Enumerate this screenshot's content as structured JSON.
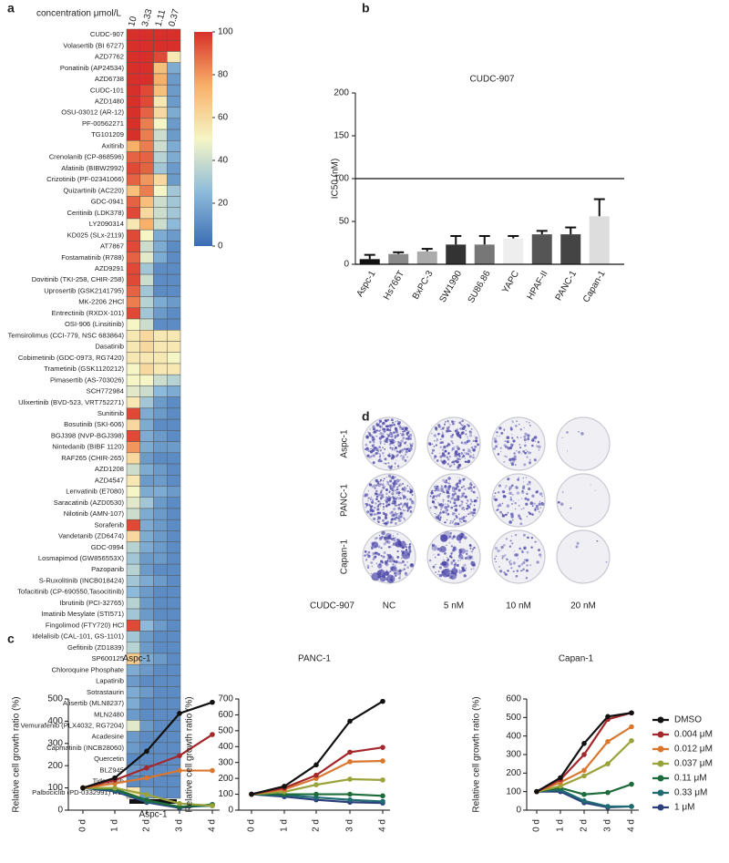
{
  "chart_data": [
    {
      "panel": "a",
      "type": "heatmap",
      "title": "concentration μmol/L",
      "columns": [
        "10",
        "3.33",
        "1.11",
        "0.37"
      ],
      "rows": [
        "CUDC-907",
        "Volasertib (BI 6727)",
        "AZD7762",
        "Ponatinib (AP24534)",
        "AZD6738",
        "CUDC-101",
        "AZD1480",
        "OSU-03012 (AR-12)",
        "PF-00562271",
        "TG101209",
        "Axitinib",
        "Crenolanib (CP-868596)",
        "Afatinib (BIBW2992)",
        "Crizotinib (PF-02341066)",
        "Quizartinib (AC220)",
        "GDC-0941",
        "Ceritinib (LDK378)",
        "LY2090314",
        "KD025 (SLx-2119)",
        "AT7867",
        "Fostamatinib (R788)",
        "AZD9291",
        "Dovitinib (TKI-258, CHIR-258)",
        "Uprosertib (GSK2141795)",
        "MK-2206 2HCl",
        "Entrectinib (RXDX-101)",
        "OSI-906 (Linsitinib)",
        "Temsirolimus (CCI-779, NSC 683864)",
        "Dasatinib",
        "Cobimetinib (GDC-0973, RG7420)",
        "Trametinib (GSK1120212)",
        "Pimasertib (AS-703026)",
        "SCH772984",
        "Ulixertinib (BVD-523, VRT752271)",
        "Sunitinib",
        "Bosutinib (SKI-606)",
        "BGJ398 (NVP-BGJ398)",
        "Nintedanib (BIBF 1120)",
        "RAF265 (CHIR-265)",
        "AZD1208",
        "AZD4547",
        "Lenvatinib (E7080)",
        "Saracatinib (AZD0530)",
        "Nilotinib (AMN-107)",
        "Sorafenib",
        "Vandetanib (ZD6474)",
        "GDC-0994",
        "Losmapimod (GW856553X)",
        "Pazopanib",
        "S-Ruxolitinib (INCB018424)",
        "Tofacitinib (CP-690550,Tasocitinib)",
        "Ibrutinib (PCI-32765)",
        "Imatinib Mesylate (STI571)",
        "Fingolimod (FTY720) HCl",
        "Idelalisib (CAL-101, GS-1101)",
        "Gefitinib (ZD1839)",
        "SP600125",
        "Chloroquine Phosphate",
        "Lapatinib",
        "Sotrastaurin",
        "Alisertib (MLN8237)",
        "MLN2480",
        "Vemurafenib (PLX4032, RG7204)",
        "Acadesine",
        "Capmatinib (INCB28060)",
        "Quercetin",
        "BLZ945",
        "Tideglusib",
        "Palbociclib (PD-0332991) HCl"
      ],
      "values": [
        [
          100,
          100,
          100,
          100
        ],
        [
          100,
          100,
          100,
          100
        ],
        [
          100,
          100,
          95,
          55
        ],
        [
          100,
          100,
          70,
          20
        ],
        [
          100,
          100,
          75,
          15
        ],
        [
          100,
          95,
          70,
          15
        ],
        [
          100,
          95,
          55,
          15
        ],
        [
          100,
          90,
          60,
          20
        ],
        [
          100,
          85,
          50,
          15
        ],
        [
          100,
          85,
          40,
          15
        ],
        [
          75,
          85,
          40,
          20
        ],
        [
          90,
          90,
          35,
          20
        ],
        [
          95,
          90,
          30,
          15
        ],
        [
          90,
          80,
          60,
          15
        ],
        [
          70,
          85,
          50,
          30
        ],
        [
          90,
          70,
          40,
          30
        ],
        [
          95,
          60,
          40,
          30
        ],
        [
          55,
          75,
          40,
          25
        ],
        [
          95,
          50,
          20,
          15
        ],
        [
          95,
          40,
          20,
          10
        ],
        [
          90,
          45,
          20,
          10
        ],
        [
          95,
          30,
          10,
          10
        ],
        [
          95,
          40,
          10,
          10
        ],
        [
          90,
          30,
          10,
          10
        ],
        [
          85,
          35,
          20,
          15
        ],
        [
          95,
          30,
          15,
          10
        ],
        [
          50,
          40,
          10,
          10
        ],
        [
          55,
          60,
          55,
          55
        ],
        [
          55,
          60,
          55,
          55
        ],
        [
          55,
          55,
          55,
          50
        ],
        [
          50,
          60,
          55,
          55
        ],
        [
          50,
          50,
          40,
          35
        ],
        [
          45,
          40,
          25,
          20
        ],
        [
          55,
          30,
          15,
          10
        ],
        [
          95,
          20,
          15,
          10
        ],
        [
          60,
          20,
          10,
          10
        ],
        [
          95,
          20,
          15,
          10
        ],
        [
          80,
          20,
          15,
          15
        ],
        [
          60,
          15,
          10,
          10
        ],
        [
          40,
          20,
          15,
          10
        ],
        [
          55,
          15,
          15,
          10
        ],
        [
          50,
          20,
          20,
          15
        ],
        [
          45,
          30,
          15,
          10
        ],
        [
          40,
          20,
          15,
          10
        ],
        [
          95,
          20,
          15,
          10
        ],
        [
          60,
          20,
          15,
          10
        ],
        [
          35,
          20,
          15,
          10
        ],
        [
          30,
          15,
          15,
          10
        ],
        [
          35,
          15,
          10,
          10
        ],
        [
          30,
          20,
          15,
          10
        ],
        [
          25,
          15,
          10,
          10
        ],
        [
          35,
          15,
          10,
          10
        ],
        [
          30,
          15,
          10,
          10
        ],
        [
          95,
          25,
          15,
          10
        ],
        [
          30,
          15,
          10,
          10
        ],
        [
          35,
          15,
          10,
          10
        ],
        [
          65,
          20,
          15,
          10
        ],
        [
          20,
          15,
          10,
          10
        ],
        [
          15,
          10,
          10,
          10
        ],
        [
          20,
          15,
          10,
          10
        ],
        [
          20,
          10,
          10,
          10
        ],
        [
          15,
          10,
          10,
          10
        ],
        [
          45,
          15,
          10,
          10
        ],
        [
          15,
          10,
          10,
          10
        ],
        [
          15,
          10,
          10,
          10
        ],
        [
          10,
          10,
          10,
          10
        ],
        [
          15,
          10,
          10,
          10
        ],
        [
          10,
          10,
          10,
          10
        ],
        [
          55,
          15,
          10,
          10
        ]
      ],
      "zlim": [
        0,
        100
      ],
      "zticks": [
        0,
        20,
        40,
        60,
        80,
        100
      ],
      "colormap": [
        "#3b6db3",
        "#8dbada",
        "#f6f5c6",
        "#f8b068",
        "#d7302a"
      ],
      "group_label": "Aspc-1"
    },
    {
      "panel": "b",
      "type": "bar",
      "title": "CUDC-907",
      "ylabel": "IC50 (nM)",
      "categories": [
        "Aspc-1",
        "Hs766T",
        "BxPC-3",
        "SW1990",
        "SU86.86",
        "YAPC",
        "HPAF-II",
        "PANC-1",
        "Capan-1"
      ],
      "values": [
        6,
        12,
        15,
        23,
        23,
        30,
        35,
        35,
        56
      ],
      "errors": [
        5,
        2,
        3,
        10,
        10,
        3,
        4,
        8,
        20
      ],
      "colors": [
        "#111111",
        "#8a8a8a",
        "#ababab",
        "#333333",
        "#777777",
        "#eeeeee",
        "#555555",
        "#444444",
        "#dddddd"
      ],
      "reference_line": 100,
      "ylim": [
        0,
        200
      ],
      "yticks": [
        0,
        50,
        100,
        150,
        200
      ]
    },
    {
      "panel": "c",
      "type": "line",
      "title": "Aspc-1",
      "ylabel": "Relative cell growth ratio (%)",
      "categories": [
        "0 d",
        "1 d",
        "2 d",
        "3 d",
        "4 d"
      ],
      "ylim": [
        0,
        500
      ],
      "yticks": [
        0,
        100,
        200,
        300,
        400,
        500
      ],
      "series": [
        {
          "color": "#111111",
          "values": [
            100,
            145,
            265,
            435,
            485
          ]
        },
        {
          "color": "#a3282b",
          "values": [
            100,
            135,
            190,
            245,
            340
          ]
        },
        {
          "color": "#d9772f",
          "values": [
            100,
            120,
            145,
            178,
            178
          ]
        },
        {
          "color": "#9aa33a",
          "values": [
            100,
            100,
            70,
            30,
            20
          ]
        },
        {
          "color": "#1d6b3b",
          "values": [
            100,
            95,
            45,
            15,
            25
          ]
        },
        {
          "color": "#1f6b72",
          "values": [
            100,
            90,
            40,
            15,
            20
          ]
        },
        {
          "color": "#2b3f7c",
          "values": [
            100,
            85,
            35,
            10,
            25
          ]
        }
      ]
    },
    {
      "type": "line",
      "title": "PANC-1",
      "ylabel": "Relative cell growth ratio (%)",
      "categories": [
        "0 d",
        "1 d",
        "2 d",
        "3 d",
        "4 d"
      ],
      "ylim": [
        0,
        700
      ],
      "yticks": [
        0,
        100,
        200,
        300,
        400,
        500,
        600,
        700
      ],
      "series": [
        {
          "color": "#111111",
          "values": [
            100,
            150,
            285,
            560,
            685
          ]
        },
        {
          "color": "#a3282b",
          "values": [
            100,
            140,
            220,
            365,
            395
          ]
        },
        {
          "color": "#d9772f",
          "values": [
            100,
            130,
            200,
            305,
            310
          ]
        },
        {
          "color": "#9aa33a",
          "values": [
            100,
            115,
            160,
            195,
            190
          ]
        },
        {
          "color": "#1d6b3b",
          "values": [
            100,
            100,
            100,
            100,
            90
          ]
        },
        {
          "color": "#1f6b72",
          "values": [
            100,
            95,
            80,
            65,
            55
          ]
        },
        {
          "color": "#2b3f7c",
          "values": [
            100,
            85,
            65,
            50,
            45
          ]
        }
      ]
    },
    {
      "type": "line",
      "title": "Capan-1",
      "ylabel": "Relative cell growth ratio (%)",
      "categories": [
        "0 d",
        "1 d",
        "2 d",
        "3 d",
        "4 d"
      ],
      "ylim": [
        0,
        600
      ],
      "yticks": [
        0,
        100,
        200,
        300,
        400,
        500,
        600
      ],
      "legend": true,
      "series": [
        {
          "name": "DMSO",
          "color": "#111111",
          "values": [
            100,
            175,
            360,
            505,
            525
          ]
        },
        {
          "name": "0.004 μM",
          "color": "#a3282b",
          "values": [
            100,
            165,
            300,
            490,
            525
          ]
        },
        {
          "name": "0.012 μM",
          "color": "#d9772f",
          "values": [
            100,
            150,
            215,
            370,
            450
          ]
        },
        {
          "name": "0.037 μM",
          "color": "#9aa33a",
          "values": [
            100,
            130,
            185,
            250,
            375
          ]
        },
        {
          "name": "0.11 μM",
          "color": "#1d6b3b",
          "values": [
            100,
            120,
            85,
            95,
            140
          ]
        },
        {
          "name": "0.33 μM",
          "color": "#1f6b72",
          "values": [
            100,
            110,
            50,
            20,
            20
          ]
        },
        {
          "name": "1 μM",
          "color": "#2b3f7c",
          "values": [
            100,
            100,
            40,
            15,
            20
          ]
        }
      ]
    }
  ],
  "colony_assay": {
    "panel": "d",
    "rows": [
      "Aspc-1",
      "PANC-1",
      "Capan-1"
    ],
    "treatment_label": "CUDC-907",
    "columns": [
      "NC",
      "5 nM",
      "10 nM",
      "20 nM"
    ]
  }
}
